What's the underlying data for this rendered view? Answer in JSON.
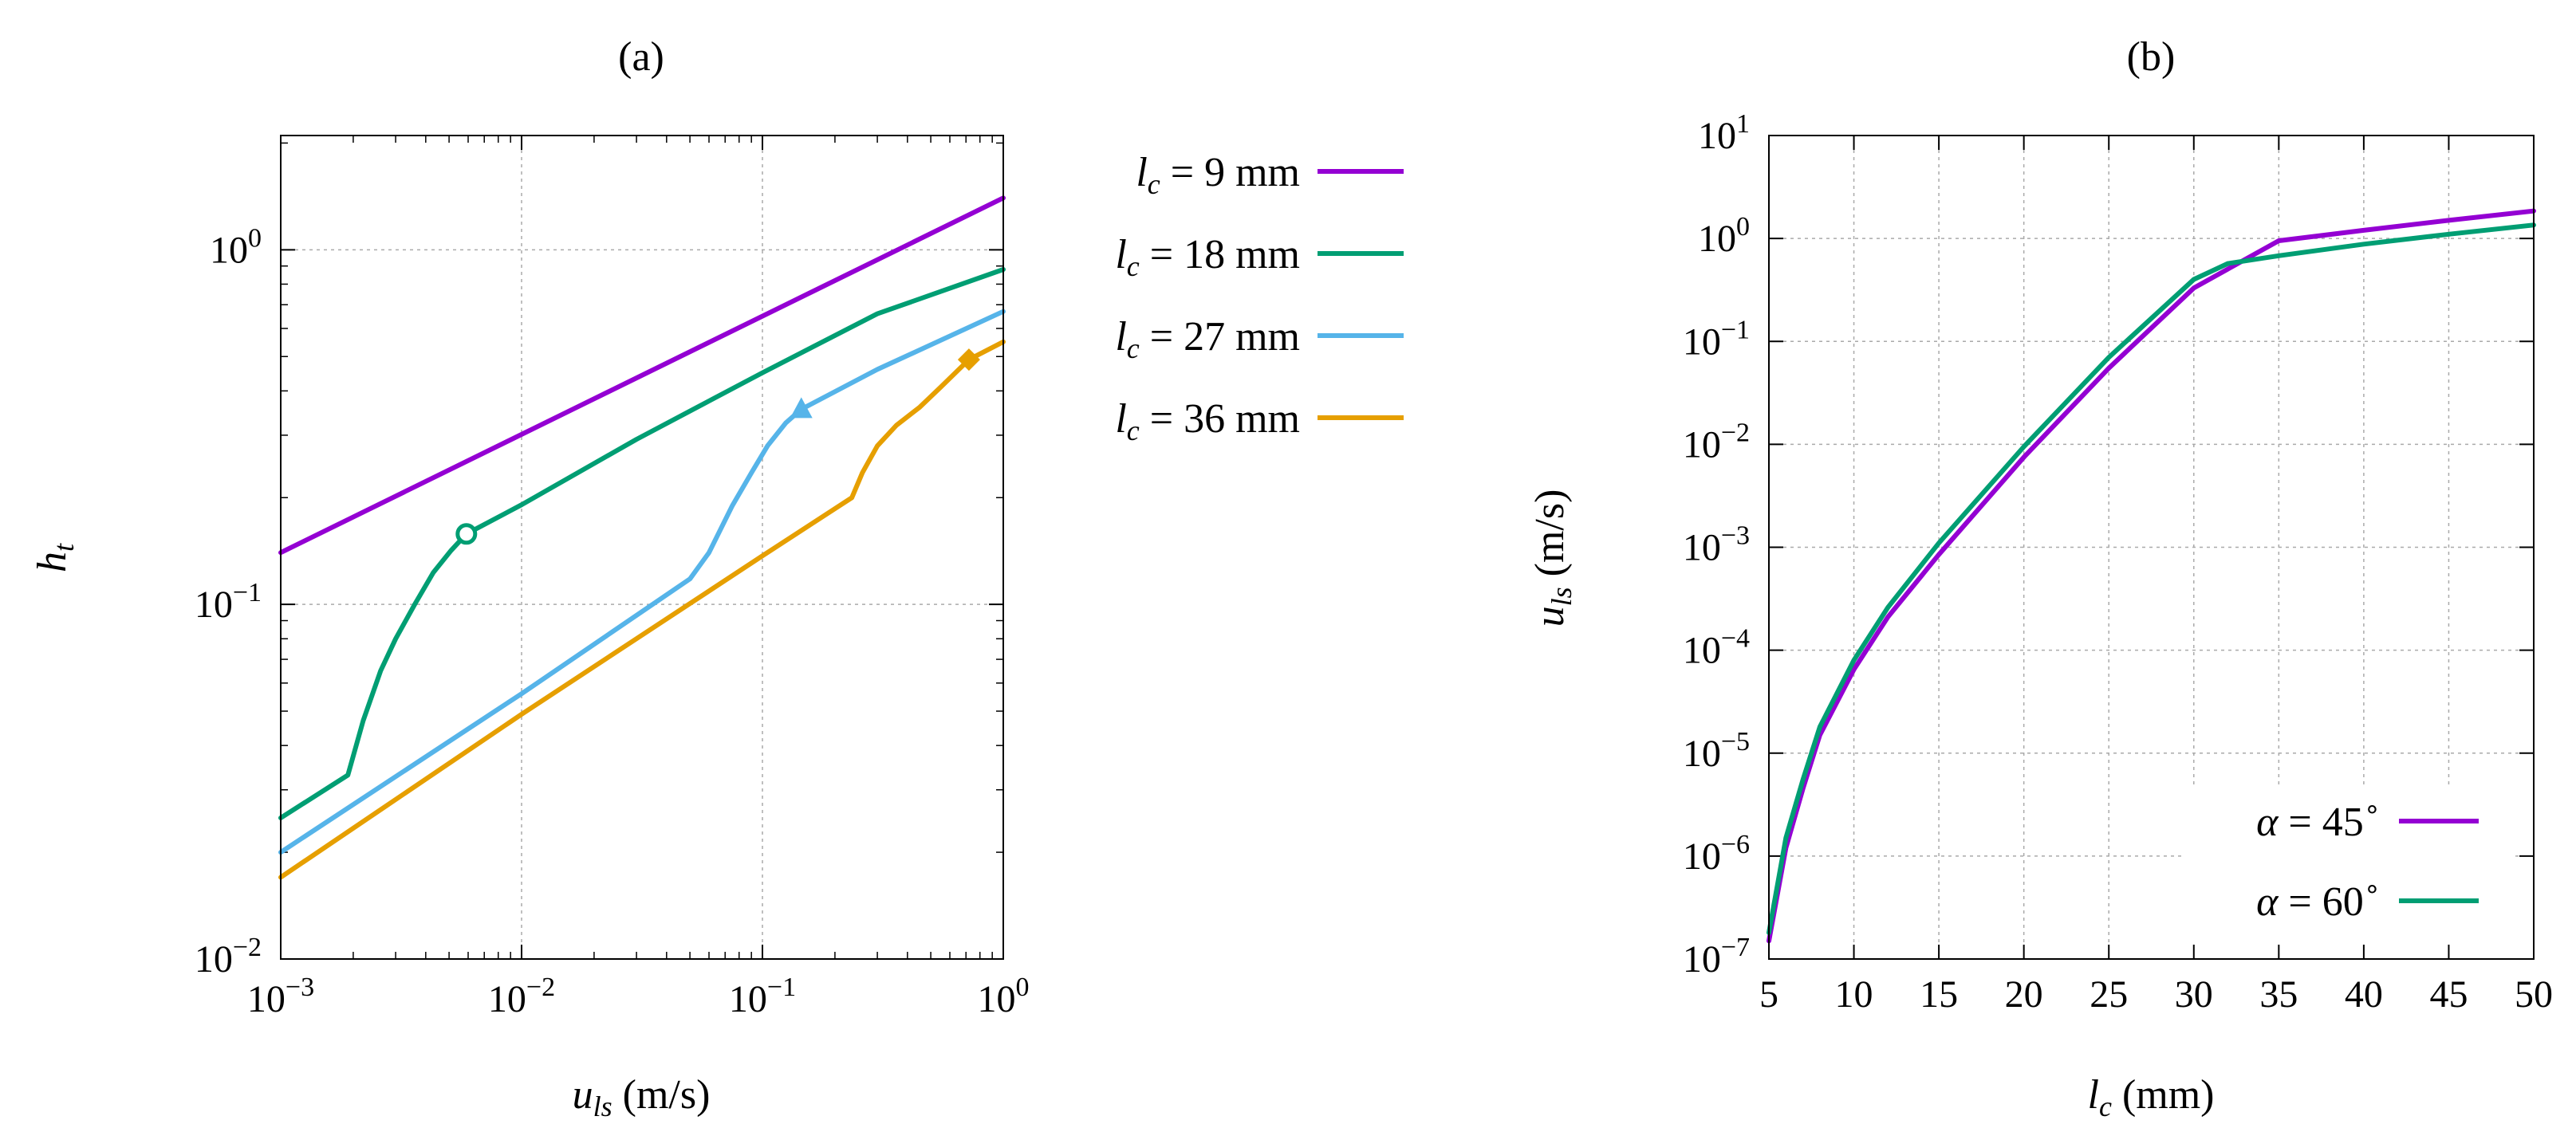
{
  "chart_data": [
    {
      "type": "line",
      "title": "(a)",
      "xlabel": {
        "var": "u",
        "sub": "ls",
        "unit": " (m/s)"
      },
      "ylabel": {
        "var": "h",
        "sub": "t"
      },
      "xscale": "log",
      "yscale": "log",
      "xlim": [
        0.001,
        1
      ],
      "ylim": [
        0.01,
        2.1
      ],
      "grid": true,
      "legend_placement": "outside-right",
      "x_ticks": [
        {
          "base": "10",
          "exp": "−3",
          "value": 0.001
        },
        {
          "base": "10",
          "exp": "−2",
          "value": 0.01
        },
        {
          "base": "10",
          "exp": "−1",
          "value": 0.1
        },
        {
          "base": "10",
          "exp": "0",
          "value": 1
        }
      ],
      "y_ticks": [
        {
          "base": "10",
          "exp": "−2",
          "value": 0.01
        },
        {
          "base": "10",
          "exp": "−1",
          "value": 0.1
        },
        {
          "base": "10",
          "exp": "0",
          "value": 1
        }
      ],
      "series": [
        {
          "name": "l_c = 9 mm",
          "label": {
            "var": "l",
            "sub": "c",
            "rest": " = 9 mm"
          },
          "color": "#9400D3",
          "x": [
            0.001,
            1
          ],
          "y": [
            0.14,
            1.4
          ]
        },
        {
          "name": "l_c = 18 mm",
          "label": {
            "var": "l",
            "sub": "c",
            "rest": " = 18 mm"
          },
          "color": "#009E73",
          "marker": {
            "shape": "open-circle",
            "x": 0.0059,
            "y": 0.158
          },
          "x": [
            0.001,
            0.0019,
            0.0022,
            0.0026,
            0.003,
            0.0036,
            0.0043,
            0.0051,
            0.0059,
            0.01,
            0.03,
            0.1,
            0.3,
            1
          ],
          "y": [
            0.025,
            0.033,
            0.047,
            0.065,
            0.08,
            0.1,
            0.123,
            0.142,
            0.158,
            0.191,
            0.292,
            0.45,
            0.66,
            0.88
          ]
        },
        {
          "name": "l_c = 27 mm",
          "label": {
            "var": "l",
            "sub": "c",
            "rest": " = 27 mm"
          },
          "color": "#56B4E9",
          "marker": {
            "shape": "filled-triangle",
            "x": 0.145,
            "y": 0.355
          },
          "x": [
            0.001,
            0.01,
            0.05,
            0.06,
            0.075,
            0.09,
            0.105,
            0.125,
            0.145,
            0.3,
            1
          ],
          "y": [
            0.02,
            0.056,
            0.118,
            0.14,
            0.19,
            0.235,
            0.28,
            0.325,
            0.355,
            0.46,
            0.67
          ]
        },
        {
          "name": "l_c = 36 mm",
          "label": {
            "var": "l",
            "sub": "c",
            "rest": " = 36 mm"
          },
          "color": "#E69F00",
          "marker": {
            "shape": "filled-diamond",
            "x": 0.72,
            "y": 0.49
          },
          "x": [
            0.001,
            0.01,
            0.1,
            0.235,
            0.26,
            0.3,
            0.36,
            0.45,
            0.55,
            0.72,
            1
          ],
          "y": [
            0.017,
            0.049,
            0.137,
            0.2,
            0.235,
            0.28,
            0.32,
            0.36,
            0.41,
            0.49,
            0.55
          ]
        }
      ]
    },
    {
      "type": "line",
      "title": "(b)",
      "xlabel": {
        "var": "l",
        "sub": "c",
        "unit": " (mm)"
      },
      "ylabel": {
        "var": "u",
        "sub": "ls",
        "unit": " (m/s)"
      },
      "xscale": "linear",
      "yscale": "log",
      "xlim": [
        5,
        50
      ],
      "ylim": [
        1e-07,
        10
      ],
      "grid": true,
      "legend_placement": "bottom-right",
      "x_ticks": [
        5,
        10,
        15,
        20,
        25,
        30,
        35,
        40,
        45,
        50
      ],
      "y_ticks": [
        {
          "base": "10",
          "exp": "−7",
          "value": 1e-07
        },
        {
          "base": "10",
          "exp": "−6",
          "value": 1e-06
        },
        {
          "base": "10",
          "exp": "−5",
          "value": 1e-05
        },
        {
          "base": "10",
          "exp": "−4",
          "value": 0.0001
        },
        {
          "base": "10",
          "exp": "−3",
          "value": 0.001
        },
        {
          "base": "10",
          "exp": "−2",
          "value": 0.01
        },
        {
          "base": "10",
          "exp": "−1",
          "value": 0.1
        },
        {
          "base": "10",
          "exp": "0",
          "value": 1
        },
        {
          "base": "10",
          "exp": "1",
          "value": 10
        }
      ],
      "series": [
        {
          "name": "α = 45°",
          "label": {
            "var": "α",
            "rest": " = 45",
            "sup": "∘"
          },
          "color": "#9400D3",
          "x": [
            5,
            6,
            7,
            8,
            10,
            12,
            15,
            20,
            25,
            30,
            35,
            40,
            45,
            50
          ],
          "y": [
            1.5e-07,
            1.2e-06,
            4.5e-06,
            1.5e-05,
            6.5e-05,
            0.00021,
            0.00085,
            0.0075,
            0.055,
            0.33,
            0.95,
            1.2,
            1.5,
            1.85
          ]
        },
        {
          "name": "α = 60°",
          "label": {
            "var": "α",
            "rest": " = 60",
            "sup": "∘"
          },
          "color": "#009E73",
          "x": [
            5,
            6,
            7,
            8,
            10,
            12,
            15,
            20,
            25,
            30,
            32,
            35,
            40,
            45,
            50
          ],
          "y": [
            1.8e-07,
            1.5e-06,
            5.5e-06,
            1.8e-05,
            8e-05,
            0.00026,
            0.0011,
            0.0095,
            0.07,
            0.4,
            0.57,
            0.68,
            0.88,
            1.1,
            1.35
          ]
        }
      ]
    }
  ]
}
